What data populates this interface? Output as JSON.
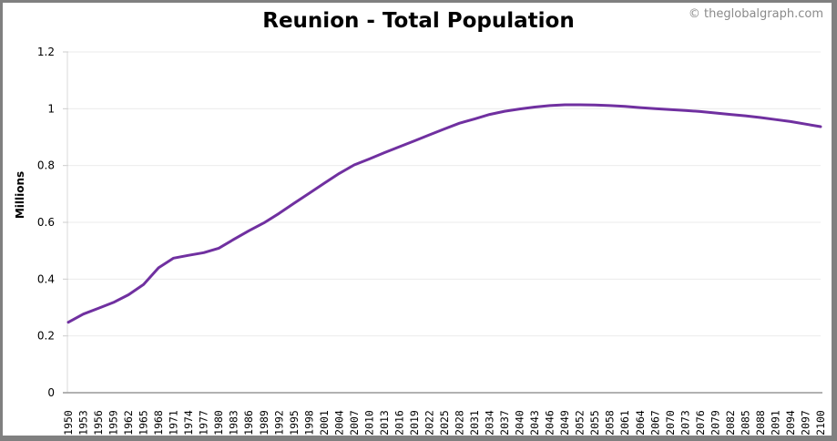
{
  "header": {
    "title": "Reunion - Total Population",
    "credit": "© theglobalgraph.com"
  },
  "colors": {
    "line": "#7030A0",
    "grid": "#ebebeb",
    "axis": "#999999",
    "frame": "#808080"
  },
  "chart_data": {
    "type": "line",
    "title": "Reunion - Total Population",
    "xlabel": "",
    "ylabel": "Millions",
    "ylim": [
      0,
      1.2
    ],
    "xlim": [
      1950,
      2100
    ],
    "yticks": [
      0,
      0.2,
      0.4,
      0.6,
      0.8,
      1,
      1.2
    ],
    "ytick_labels": [
      "0",
      "0.2",
      "0.4",
      "0.6",
      "0.8",
      "1",
      "1.2"
    ],
    "xticks": [
      1950,
      1953,
      1956,
      1959,
      1962,
      1965,
      1968,
      1971,
      1974,
      1977,
      1980,
      1983,
      1986,
      1989,
      1992,
      1995,
      1998,
      2001,
      2004,
      2007,
      2010,
      2013,
      2016,
      2019,
      2022,
      2025,
      2028,
      2031,
      2034,
      2037,
      2040,
      2043,
      2046,
      2049,
      2052,
      2055,
      2058,
      2061,
      2064,
      2067,
      2070,
      2073,
      2076,
      2079,
      2082,
      2085,
      2088,
      2091,
      2094,
      2097,
      2100
    ],
    "grid": true,
    "legend": null,
    "series": [
      {
        "name": "Total Population",
        "x": [
          1950,
          1953,
          1956,
          1959,
          1962,
          1965,
          1968,
          1971,
          1974,
          1977,
          1980,
          1983,
          1986,
          1989,
          1992,
          1995,
          1998,
          2001,
          2004,
          2007,
          2010,
          2013,
          2016,
          2019,
          2022,
          2025,
          2028,
          2031,
          2034,
          2037,
          2040,
          2043,
          2046,
          2049,
          2052,
          2055,
          2058,
          2061,
          2064,
          2067,
          2070,
          2073,
          2076,
          2079,
          2082,
          2085,
          2088,
          2091,
          2094,
          2097,
          2100
        ],
        "values": [
          0.248,
          0.277,
          0.297,
          0.318,
          0.345,
          0.381,
          0.44,
          0.474,
          0.484,
          0.493,
          0.509,
          0.54,
          0.57,
          0.598,
          0.631,
          0.667,
          0.702,
          0.737,
          0.772,
          0.802,
          0.823,
          0.845,
          0.866,
          0.887,
          0.908,
          0.929,
          0.949,
          0.964,
          0.98,
          0.991,
          0.999,
          1.006,
          1.011,
          1.014,
          1.014,
          1.013,
          1.011,
          1.008,
          1.004,
          1.0,
          0.997,
          0.994,
          0.99,
          0.985,
          0.98,
          0.975,
          0.969,
          0.962,
          0.955,
          0.946,
          0.937
        ]
      }
    ]
  }
}
